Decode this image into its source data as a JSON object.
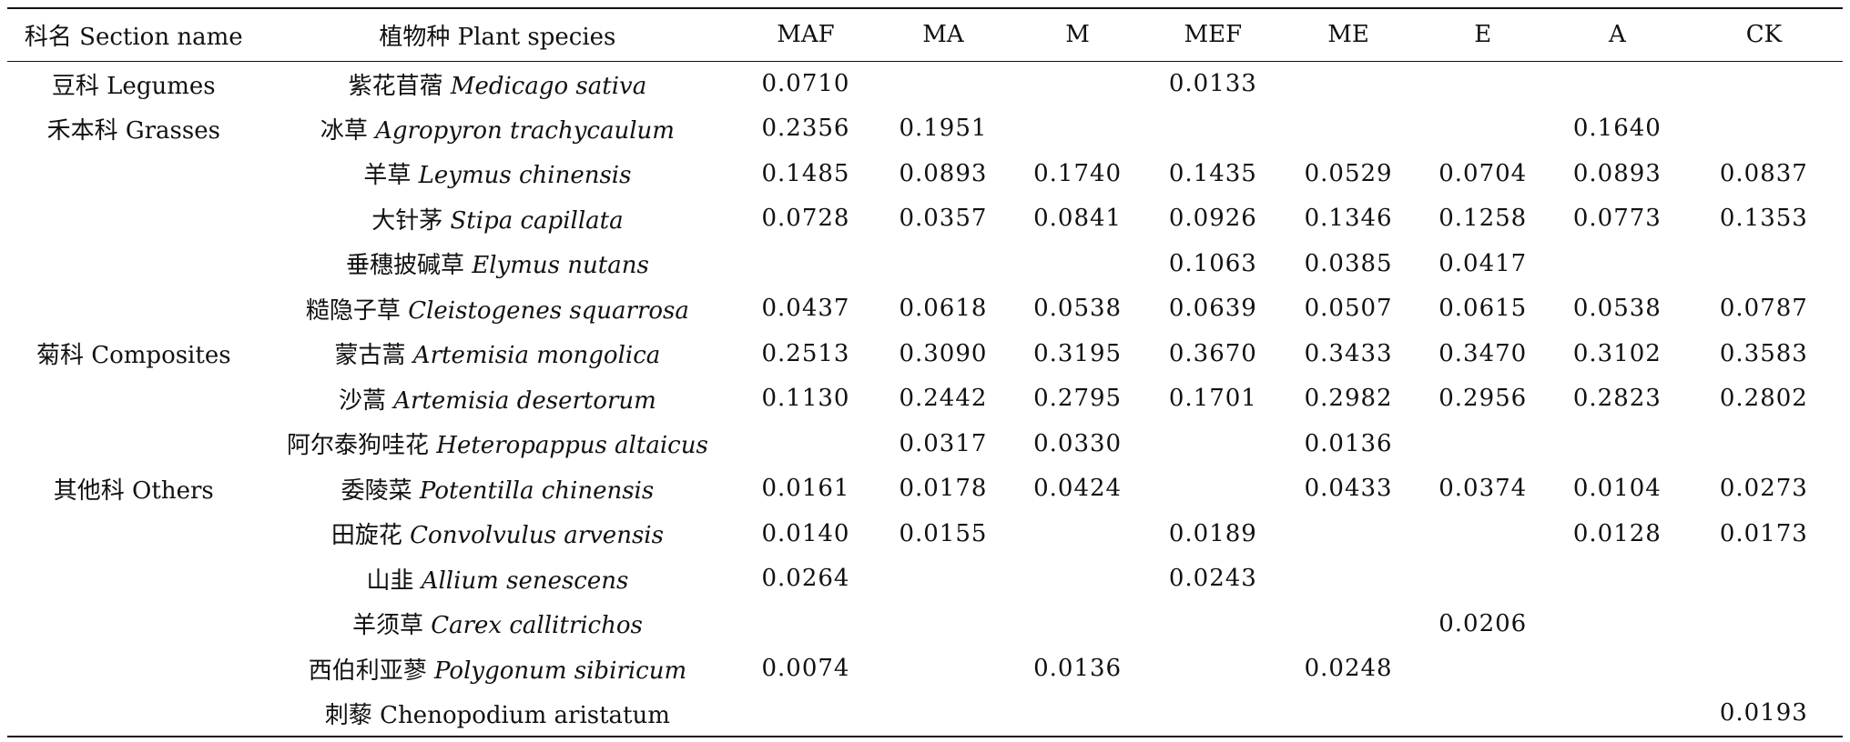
{
  "table": {
    "headers": [
      "科名 Section name",
      "植物种 Plant species",
      "MAF",
      "MA",
      "M",
      "MEF",
      "ME",
      "E",
      "A",
      "CK"
    ],
    "rows": [
      {
        "family": "豆科 Legumes",
        "species_zh": "紫花苜蓿",
        "species_latin": "Medicago sativa",
        "values": [
          "0.0710",
          "",
          "",
          "0.0133",
          "",
          "",
          "",
          ""
        ]
      },
      {
        "family": "禾本科 Grasses",
        "species_zh": "冰草",
        "species_latin": "Agropyron trachycaulum",
        "values": [
          "0.2356",
          "0.1951",
          "",
          "",
          "",
          "",
          "0.1640",
          ""
        ]
      },
      {
        "family": "",
        "species_zh": "羊草",
        "species_latin": "Leymus chinensis",
        "values": [
          "0.1485",
          "0.0893",
          "0.1740",
          "0.1435",
          "0.0529",
          "0.0704",
          "0.0893",
          "0.0837"
        ]
      },
      {
        "family": "",
        "species_zh": "大针茅",
        "species_latin": "Stipa capillata",
        "values": [
          "0.0728",
          "0.0357",
          "0.0841",
          "0.0926",
          "0.1346",
          "0.1258",
          "0.0773",
          "0.1353"
        ]
      },
      {
        "family": "",
        "species_zh": "垂穗披碱草",
        "species_latin": "Elymus nutans",
        "values": [
          "",
          "",
          "",
          "0.1063",
          "0.0385",
          "0.0417",
          "",
          ""
        ]
      },
      {
        "family": "",
        "species_zh": "糙隐子草",
        "species_latin": "Cleistogenes squarrosa",
        "values": [
          "0.0437",
          "0.0618",
          "0.0538",
          "0.0639",
          "0.0507",
          "0.0615",
          "0.0538",
          "0.0787"
        ]
      },
      {
        "family": "菊科 Composites",
        "species_zh": "蒙古蒿",
        "species_latin": "Artemisia mongolica",
        "values": [
          "0.2513",
          "0.3090",
          "0.3195",
          "0.3670",
          "0.3433",
          "0.3470",
          "0.3102",
          "0.3583"
        ]
      },
      {
        "family": "",
        "species_zh": "沙蒿",
        "species_latin": "Artemisia desertorum",
        "values": [
          "0.1130",
          "0.2442",
          "0.2795",
          "0.1701",
          "0.2982",
          "0.2956",
          "0.2823",
          "0.2802"
        ]
      },
      {
        "family": "",
        "species_zh": "阿尔泰狗哇花",
        "species_latin": "Heteropappus altaicus",
        "values": [
          "",
          "0.0317",
          "0.0330",
          "",
          "0.0136",
          "",
          "",
          ""
        ]
      },
      {
        "family": "其他科 Others",
        "species_zh": "委陵菜",
        "species_latin": "Potentilla chinensis",
        "values": [
          "0.0161",
          "0.0178",
          "0.0424",
          "",
          "0.0433",
          "0.0374",
          "0.0104",
          "0.0273"
        ]
      },
      {
        "family": "",
        "species_zh": "田旋花",
        "species_latin": "Convolvulus arvensis",
        "values": [
          "0.0140",
          "0.0155",
          "",
          "0.0189",
          "",
          "",
          "0.0128",
          "0.0173"
        ]
      },
      {
        "family": "",
        "species_zh": "山韭",
        "species_latin": "Allium senescens",
        "values": [
          "0.0264",
          "",
          "",
          "0.0243",
          "",
          "",
          "",
          ""
        ]
      },
      {
        "family": "",
        "species_zh": "羊须草",
        "species_latin": "Carex callitrichos",
        "values": [
          "",
          "",
          "",
          "",
          "",
          "0.0206",
          "",
          ""
        ]
      },
      {
        "family": "",
        "species_zh": "西伯利亚蓼",
        "species_latin": "Polygonum sibiricum",
        "values": [
          "0.0074",
          "",
          "0.0136",
          "",
          "0.0248",
          "",
          "",
          ""
        ]
      },
      {
        "family": "",
        "species_zh": "刺藜",
        "species_latin": "Chenopodium aristatum",
        "values": [
          "",
          "",
          "",
          "",
          "",
          "",
          "",
          "0.0193"
        ]
      }
    ]
  }
}
